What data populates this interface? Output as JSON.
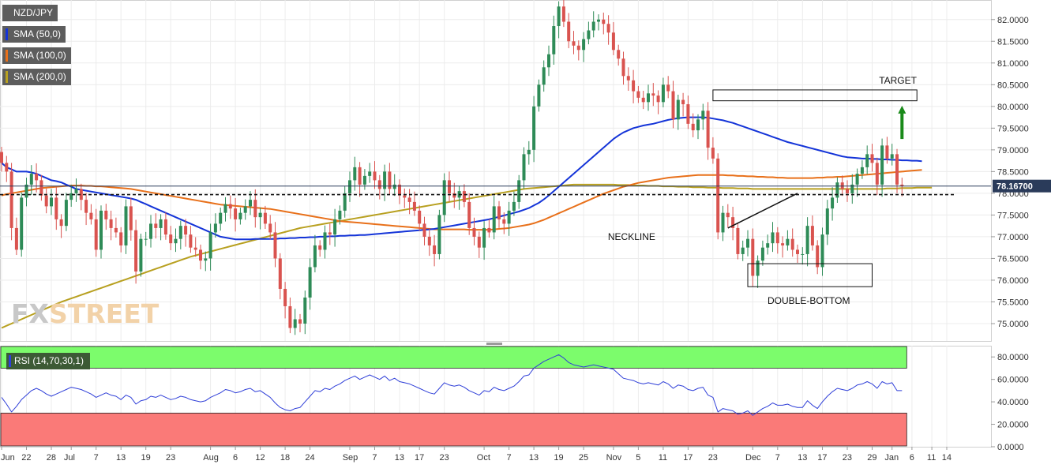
{
  "legend": [
    {
      "label": "NZD/JPY",
      "color": "#5d5d5d"
    },
    {
      "label": "SMA (50,0)",
      "color": "#1434d8"
    },
    {
      "label": "SMA (100,0)",
      "color": "#e8701a"
    },
    {
      "label": "SMA (200,0)",
      "color": "#b8a020"
    }
  ],
  "rsi_label": "RSI (14,70,30,1)",
  "watermark": {
    "fx": "FX",
    "street": "STREET"
  },
  "colors": {
    "up": "#2e8b57",
    "down": "#d9534f",
    "sma50": "#1434d8",
    "sma100": "#e8701a",
    "sma200": "#b8a020",
    "rsi_line": "#2f3fd8",
    "overbought_zone": "#7cfc6c",
    "oversold_zone": "#fa7a78",
    "price_tag": "#2a3b5a",
    "target_arrow": "#1a8a1a"
  },
  "chart_data": [
    {
      "type": "candlestick",
      "pair": "NZD/JPY",
      "current_price": 78.167,
      "current_price_label": "78.16700",
      "ylim": [
        74.6,
        82.45
      ],
      "y_ticks": [
        "82.0000",
        "81.5000",
        "81.0000",
        "80.5000",
        "80.0000",
        "79.5000",
        "79.0000",
        "78.5000",
        "78.0000",
        "77.5000",
        "77.0000",
        "76.5000",
        "76.0000",
        "75.5000",
        "75.0000"
      ],
      "y_tick_values": [
        82.0,
        81.5,
        81.0,
        80.5,
        80.0,
        79.5,
        79.0,
        78.5,
        78.0,
        77.5,
        77.0,
        76.5,
        76.0,
        75.5,
        75.0
      ],
      "x_ticks": [
        "Jun",
        "22",
        "28",
        "Jul",
        "7",
        "13",
        "19",
        "23",
        "Aug",
        "6",
        "12",
        "18",
        "24",
        "Sep",
        "7",
        "13",
        "17",
        "23",
        "Oct",
        "7",
        "13",
        "19",
        "25",
        "Nov",
        "5",
        "11",
        "17",
        "23",
        "Dec",
        "7",
        "13",
        "17",
        "23",
        "29",
        "Jan",
        "6",
        "11",
        "14"
      ],
      "x_tick_index": [
        0,
        5,
        10,
        14,
        19,
        24,
        29,
        34,
        42,
        47,
        52,
        57,
        62,
        70,
        75,
        80,
        84,
        89,
        97,
        102,
        107,
        112,
        117,
        123,
        128,
        133,
        138,
        143,
        151,
        156,
        161,
        165,
        170,
        175,
        179,
        183,
        187,
        190
      ],
      "close": [
        78.7,
        78.5,
        77.2,
        76.7,
        77.9,
        78.2,
        78.45,
        78.3,
        77.95,
        77.7,
        77.9,
        77.4,
        77.25,
        77.85,
        78.0,
        78.1,
        77.85,
        77.55,
        77.4,
        76.7,
        77.6,
        77.4,
        77.2,
        77.1,
        76.8,
        77.7,
        77.15,
        76.2,
        76.95,
        76.95,
        77.3,
        77.2,
        77.4,
        77.05,
        76.85,
        76.95,
        77.25,
        77.05,
        76.75,
        76.7,
        76.45,
        76.5,
        77.1,
        77.3,
        77.55,
        77.75,
        77.65,
        77.4,
        77.55,
        77.7,
        77.85,
        77.45,
        77.55,
        77.3,
        77.1,
        76.5,
        75.8,
        75.4,
        74.9,
        75.1,
        75.0,
        75.6,
        76.3,
        76.8,
        76.7,
        77.1,
        77.05,
        77.4,
        77.6,
        78.0,
        78.3,
        78.6,
        78.2,
        78.4,
        78.5,
        78.3,
        78.1,
        78.5,
        78.1,
        78.2,
        77.95,
        77.9,
        77.8,
        77.6,
        77.3,
        77.0,
        76.8,
        76.6,
        77.5,
        78.3,
        78.0,
        77.9,
        78.05,
        77.8,
        77.2,
        77.0,
        76.75,
        77.2,
        77.1,
        77.7,
        77.4,
        77.3,
        77.6,
        77.8,
        78.3,
        78.9,
        79.0,
        80.0,
        80.5,
        80.9,
        81.2,
        81.85,
        82.3,
        81.95,
        81.5,
        81.4,
        81.3,
        81.55,
        81.75,
        81.95,
        82.0,
        81.9,
        81.7,
        81.3,
        81.1,
        80.7,
        80.6,
        80.35,
        80.2,
        80.1,
        80.3,
        80.25,
        80.1,
        80.5,
        80.35,
        79.7,
        80.15,
        80.05,
        79.6,
        79.45,
        79.7,
        79.9,
        79.05,
        78.8,
        77.1,
        77.55,
        77.45,
        77.2,
        76.6,
        76.75,
        76.95,
        76.1,
        76.45,
        76.75,
        76.85,
        77.1,
        76.85,
        76.8,
        76.95,
        76.7,
        76.6,
        76.6,
        77.25,
        76.8,
        76.3,
        77.05,
        77.65,
        77.9,
        78.25,
        78.1,
        78.0,
        78.2,
        78.45,
        78.6,
        78.9,
        78.7,
        78.2,
        79.1,
        78.8,
        78.9,
        78.2,
        78.17
      ],
      "sma50": [
        78.7,
        78.6,
        78.55,
        78.5,
        78.5,
        78.5,
        78.48,
        78.45,
        78.4,
        78.35,
        78.3,
        78.28,
        78.25,
        78.2,
        78.15,
        78.1,
        78.08,
        78.06,
        78.04,
        78.02,
        78.0,
        77.98,
        77.96,
        77.94,
        77.92,
        77.9,
        77.88,
        77.85,
        77.8,
        77.75,
        77.7,
        77.65,
        77.6,
        77.55,
        77.5,
        77.45,
        77.4,
        77.35,
        77.3,
        77.25,
        77.2,
        77.15,
        77.1,
        77.05,
        77.0,
        76.98,
        76.96,
        76.94,
        76.94,
        76.94,
        76.94,
        76.95,
        76.95,
        76.95,
        76.95,
        76.95,
        76.96,
        76.96,
        76.97,
        76.97,
        76.98,
        76.98,
        76.99,
        76.99,
        77.0,
        77.0,
        77.01,
        77.01,
        77.02,
        77.02,
        77.03,
        77.03,
        77.04,
        77.04,
        77.05,
        77.06,
        77.07,
        77.08,
        77.09,
        77.1,
        77.11,
        77.12,
        77.13,
        77.14,
        77.15,
        77.16,
        77.17,
        77.18,
        77.2,
        77.22,
        77.24,
        77.26,
        77.28,
        77.3,
        77.32,
        77.34,
        77.36,
        77.38,
        77.4,
        77.43,
        77.46,
        77.49,
        77.52,
        77.55,
        77.58,
        77.62,
        77.66,
        77.72,
        77.78,
        77.86,
        77.95,
        78.05,
        78.15,
        78.25,
        78.35,
        78.45,
        78.55,
        78.65,
        78.75,
        78.85,
        78.95,
        79.05,
        79.15,
        79.25,
        79.33,
        79.4,
        79.45,
        79.5,
        79.53,
        79.56,
        79.58,
        79.6,
        79.63,
        79.66,
        79.69,
        79.71,
        79.73,
        79.74,
        79.75,
        79.75,
        79.75,
        79.75,
        79.74,
        79.72,
        79.7,
        79.68,
        79.65,
        79.62,
        79.58,
        79.54,
        79.5,
        79.46,
        79.42,
        79.38,
        79.34,
        79.3,
        79.26,
        79.22,
        79.18,
        79.15,
        79.12,
        79.09,
        79.06,
        79.03,
        79.0,
        78.97,
        78.94,
        78.91,
        78.88,
        78.85,
        78.83,
        78.82,
        78.81,
        78.8,
        78.8,
        78.79,
        78.79,
        78.78,
        78.78,
        78.77,
        78.77,
        78.76,
        78.76,
        78.75,
        78.75,
        78.74
      ],
      "sma100": [
        77.95,
        77.98,
        78.0,
        78.02,
        78.04,
        78.06,
        78.08,
        78.1,
        78.12,
        78.13,
        78.14,
        78.15,
        78.16,
        78.17,
        78.18,
        78.18,
        78.18,
        78.17,
        78.17,
        78.16,
        78.16,
        78.15,
        78.14,
        78.13,
        78.12,
        78.11,
        78.1,
        78.08,
        78.06,
        78.04,
        78.02,
        78.0,
        77.98,
        77.96,
        77.94,
        77.92,
        77.9,
        77.88,
        77.86,
        77.84,
        77.82,
        77.8,
        77.78,
        77.76,
        77.74,
        77.73,
        77.72,
        77.71,
        77.7,
        77.69,
        77.68,
        77.67,
        77.66,
        77.65,
        77.64,
        77.62,
        77.6,
        77.58,
        77.56,
        77.54,
        77.52,
        77.5,
        77.48,
        77.46,
        77.44,
        77.42,
        77.4,
        77.38,
        77.36,
        77.35,
        77.34,
        77.33,
        77.32,
        77.31,
        77.3,
        77.29,
        77.28,
        77.27,
        77.26,
        77.25,
        77.24,
        77.23,
        77.22,
        77.21,
        77.2,
        77.19,
        77.18,
        77.17,
        77.17,
        77.17,
        77.17,
        77.17,
        77.17,
        77.17,
        77.16,
        77.16,
        77.16,
        77.16,
        77.16,
        77.17,
        77.18,
        77.19,
        77.2,
        77.22,
        77.24,
        77.26,
        77.28,
        77.31,
        77.35,
        77.39,
        77.44,
        77.49,
        77.54,
        77.59,
        77.64,
        77.69,
        77.74,
        77.79,
        77.84,
        77.89,
        77.94,
        77.99,
        78.03,
        78.07,
        78.11,
        78.15,
        78.18,
        78.21,
        78.24,
        78.26,
        78.28,
        78.3,
        78.32,
        78.34,
        78.36,
        78.37,
        78.38,
        78.39,
        78.4,
        78.41,
        78.42,
        78.42,
        78.42,
        78.42,
        78.42,
        78.42,
        78.41,
        78.41,
        78.4,
        78.4,
        78.39,
        78.39,
        78.38,
        78.38,
        78.37,
        78.37,
        78.36,
        78.36,
        78.35,
        78.35,
        78.35,
        78.35,
        78.35,
        78.35,
        78.36,
        78.36,
        78.37,
        78.37,
        78.38,
        78.38,
        78.39,
        78.4,
        78.41,
        78.42,
        78.43,
        78.44,
        78.45,
        78.46,
        78.47,
        78.48,
        78.49,
        78.5,
        78.51,
        78.52,
        78.53,
        78.54
      ],
      "sma200": [
        74.9,
        74.95,
        75.0,
        75.05,
        75.1,
        75.15,
        75.2,
        75.25,
        75.3,
        75.35,
        75.4,
        75.45,
        75.5,
        75.54,
        75.58,
        75.62,
        75.66,
        75.7,
        75.74,
        75.78,
        75.82,
        75.86,
        75.9,
        75.94,
        75.98,
        76.02,
        76.06,
        76.1,
        76.14,
        76.18,
        76.22,
        76.26,
        76.3,
        76.34,
        76.38,
        76.42,
        76.46,
        76.5,
        76.54,
        76.57,
        76.6,
        76.63,
        76.66,
        76.69,
        76.72,
        76.75,
        76.78,
        76.81,
        76.84,
        76.87,
        76.9,
        76.93,
        76.96,
        76.99,
        77.02,
        77.05,
        77.08,
        77.11,
        77.14,
        77.17,
        77.2,
        77.22,
        77.24,
        77.26,
        77.28,
        77.3,
        77.32,
        77.34,
        77.36,
        77.38,
        77.4,
        77.42,
        77.44,
        77.46,
        77.48,
        77.5,
        77.52,
        77.54,
        77.56,
        77.58,
        77.6,
        77.62,
        77.64,
        77.66,
        77.68,
        77.7,
        77.72,
        77.74,
        77.76,
        77.78,
        77.8,
        77.82,
        77.84,
        77.86,
        77.88,
        77.9,
        77.92,
        77.94,
        77.96,
        77.98,
        78.0,
        78.02,
        78.04,
        78.06,
        78.08,
        78.1,
        78.11,
        78.12,
        78.13,
        78.14,
        78.15,
        78.16,
        78.17,
        78.18,
        78.19,
        78.2,
        78.2,
        78.2,
        78.2,
        78.2,
        78.2,
        78.2,
        78.2,
        78.2,
        78.19,
        78.19,
        78.19,
        78.18,
        78.18,
        78.18,
        78.17,
        78.17,
        78.17,
        78.16,
        78.16,
        78.16,
        78.15,
        78.15,
        78.15,
        78.14,
        78.14,
        78.14,
        78.13,
        78.13,
        78.13,
        78.12,
        78.12,
        78.12,
        78.11,
        78.11,
        78.11,
        78.1,
        78.1,
        78.1,
        78.1,
        78.1,
        78.1,
        78.1,
        78.1,
        78.1,
        78.1,
        78.1,
        78.1,
        78.1,
        78.1,
        78.1,
        78.1,
        78.1,
        78.1,
        78.1,
        78.1,
        78.1,
        78.1,
        78.1,
        78.1,
        78.1,
        78.1,
        78.1,
        78.11,
        78.11,
        78.11,
        78.12,
        78.12,
        78.12,
        78.13,
        78.13,
        78.13,
        78.13
      ],
      "annotations": {
        "neckline_label": "NECKLINE",
        "double_bottom_label": "DOUBLE-BOTTOM",
        "target_label": "TARGET",
        "neckline_level": 77.97,
        "neckline_start": {
          "index": 146,
          "price": 77.2
        },
        "neckline_end": {
          "index": 160,
          "price": 78.0
        },
        "neckline_label_anchor": {
          "index": 133,
          "price": 77.0
        },
        "double_bottom_box": {
          "from_index": 150,
          "to_index": 175,
          "top": 76.38,
          "bottom": 75.85
        },
        "target_box": {
          "from_index": 143,
          "to_index": 184,
          "top": 80.38,
          "bottom": 80.13
        },
        "target_arrow": {
          "index": 181,
          "from": 79.25,
          "to": 80.0
        }
      }
    },
    {
      "type": "line",
      "title": "RSI (14,70,30,1)",
      "ylim": [
        0,
        90
      ],
      "y_ticks": [
        "80.0000",
        "60.0000",
        "40.0000",
        "20.0000",
        "0.0000"
      ],
      "y_tick_values": [
        80,
        60,
        40,
        20,
        0
      ],
      "overbought": 70,
      "oversold": 30,
      "values": [
        44,
        38,
        31,
        36,
        42,
        46,
        50,
        52,
        50,
        47,
        45,
        47,
        49,
        51,
        53,
        52,
        51,
        49,
        47,
        44,
        46,
        48,
        46,
        45,
        42,
        46,
        44,
        38,
        41,
        42,
        45,
        44,
        46,
        44,
        42,
        43,
        45,
        44,
        42,
        41,
        40,
        41,
        44,
        46,
        48,
        51,
        50,
        48,
        49,
        51,
        52,
        49,
        50,
        47,
        44,
        39,
        35,
        33,
        32,
        34,
        35,
        40,
        45,
        50,
        49,
        52,
        51,
        54,
        56,
        59,
        61,
        63,
        60,
        62,
        64,
        62,
        60,
        63,
        59,
        61,
        58,
        57,
        56,
        54,
        52,
        50,
        48,
        47,
        52,
        57,
        55,
        54,
        55,
        53,
        50,
        48,
        46,
        50,
        49,
        53,
        51,
        50,
        52,
        54,
        58,
        63,
        64,
        70,
        73,
        76,
        78,
        80,
        82,
        79,
        75,
        73,
        72,
        71,
        72,
        73,
        72,
        71,
        70,
        69,
        65,
        61,
        60,
        59,
        57,
        56,
        57,
        56,
        55,
        58,
        56,
        52,
        55,
        54,
        51,
        50,
        52,
        53,
        46,
        44,
        31,
        34,
        33,
        32,
        29,
        30,
        32,
        28,
        31,
        34,
        36,
        39,
        37,
        37,
        38,
        36,
        35,
        35,
        41,
        37,
        34,
        40,
        45,
        49,
        52,
        51,
        50,
        52,
        55,
        56,
        58,
        56,
        52,
        58,
        56,
        57,
        50,
        50
      ]
    }
  ]
}
